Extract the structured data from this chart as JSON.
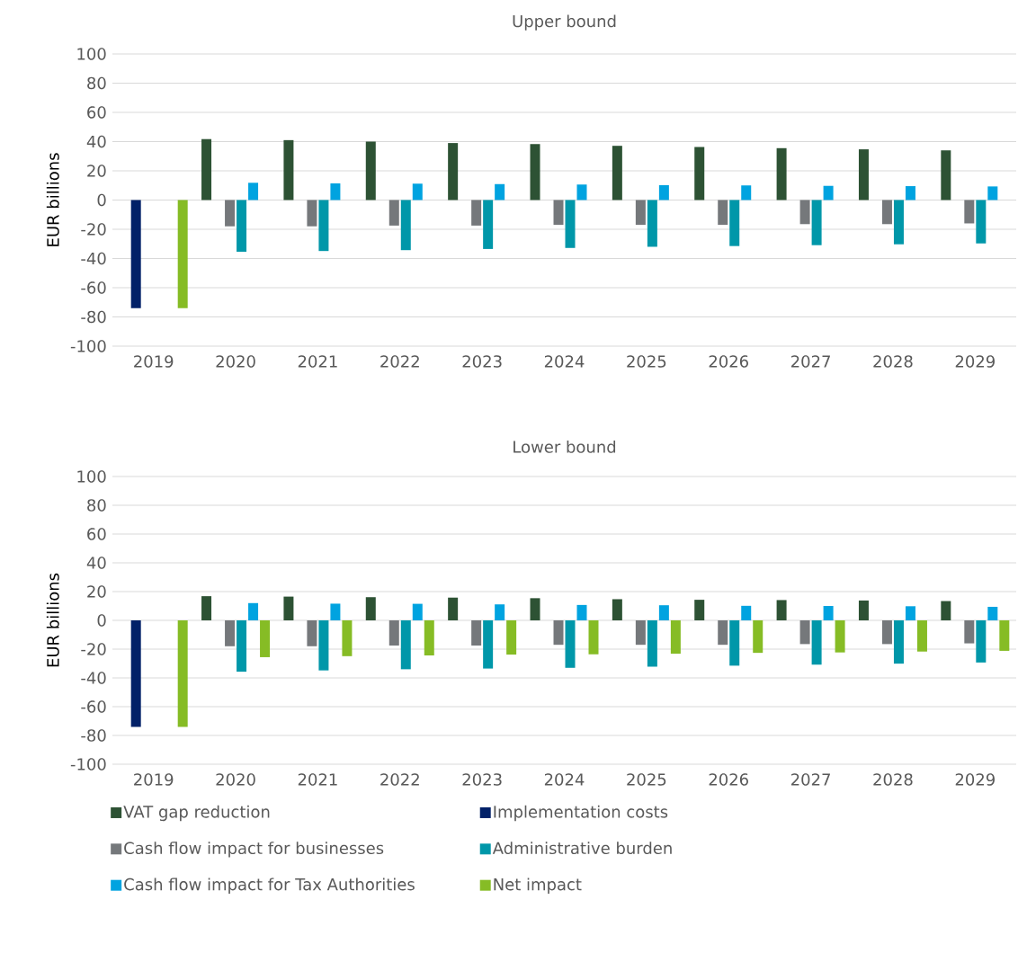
{
  "chart_data": [
    {
      "type": "bar",
      "title": "Upper bound",
      "ylabel": "EUR billions",
      "categories": [
        "2019",
        "2020",
        "2021",
        "2022",
        "2023",
        "2024",
        "2025",
        "2026",
        "2027",
        "2028",
        "2029"
      ],
      "ylim": [
        -100,
        100
      ],
      "yticks": [
        -100,
        -80,
        -60,
        -40,
        -20,
        0,
        20,
        40,
        60,
        80,
        100
      ],
      "grid": "y",
      "legend": false,
      "series": [
        {
          "color": "#2d5234",
          "values": [
            null,
            41.7,
            41,
            40,
            39,
            38.3,
            37.1,
            36.3,
            35.5,
            34.7,
            34
          ]
        },
        {
          "color": "#022168",
          "values": [
            -74,
            null,
            null,
            null,
            null,
            null,
            null,
            null,
            null,
            null,
            null
          ]
        },
        {
          "color": "#75787b",
          "values": [
            null,
            -18,
            -18,
            -17.5,
            -17.5,
            -17,
            -17,
            -17,
            -16.5,
            -16.5,
            -16
          ]
        },
        {
          "color": "#0097a9",
          "values": [
            null,
            -35.4,
            -34.9,
            -34.3,
            -33.5,
            -32.8,
            -32,
            -31.5,
            -30.9,
            -30.3,
            -29.7
          ]
        },
        {
          "color": "#00a3e0",
          "values": [
            null,
            11.8,
            11.4,
            11.2,
            10.9,
            10.6,
            10.2,
            10,
            9.7,
            9.5,
            9.3
          ]
        },
        {
          "color": "#86bc25",
          "values": [
            -74,
            0,
            0,
            0,
            0,
            0,
            0,
            0,
            0,
            0,
            0
          ]
        }
      ]
    },
    {
      "type": "bar",
      "title": "Lower bound",
      "ylabel": "EUR billions",
      "categories": [
        "2019",
        "2020",
        "2021",
        "2022",
        "2023",
        "2024",
        "2025",
        "2026",
        "2027",
        "2028",
        "2029"
      ],
      "ylim": [
        -100,
        100
      ],
      "yticks": [
        -100,
        -80,
        -60,
        -40,
        -20,
        0,
        20,
        40,
        60,
        80,
        100
      ],
      "grid": "y",
      "legend": "bottom",
      "series": [
        {
          "name": "VAT gap reduction",
          "color": "#2d5234",
          "values": [
            null,
            16.8,
            16.5,
            16.1,
            15.8,
            15.4,
            14.7,
            14.3,
            14.1,
            13.8,
            13.4
          ]
        },
        {
          "name": "Implementation costs",
          "color": "#022168",
          "values": [
            -74,
            null,
            null,
            null,
            null,
            null,
            null,
            null,
            null,
            null,
            null
          ]
        },
        {
          "name": "Cash flow impact for businesses",
          "color": "#75787b",
          "values": [
            null,
            -18,
            -18,
            -17.5,
            -17.5,
            -17,
            -17,
            -17,
            -16.5,
            -16.5,
            -16
          ]
        },
        {
          "name": "Administrative burden",
          "color": "#0097a9",
          "values": [
            null,
            -35.7,
            -34.8,
            -34,
            -33.5,
            -33,
            -32.2,
            -31.5,
            -30.8,
            -30.1,
            -29.3
          ]
        },
        {
          "name": "Cash flow impact for Tax Authorities",
          "color": "#00a3e0",
          "values": [
            null,
            12,
            11.6,
            11.5,
            11.1,
            10.7,
            10.5,
            10.1,
            10,
            9.8,
            9.4
          ]
        },
        {
          "name": "Net impact",
          "color": "#86bc25",
          "values": [
            -74,
            -25.6,
            -24.9,
            -24.4,
            -23.8,
            -23.6,
            -23.2,
            -22.6,
            -22.3,
            -21.7,
            -21.2
          ]
        }
      ]
    }
  ]
}
